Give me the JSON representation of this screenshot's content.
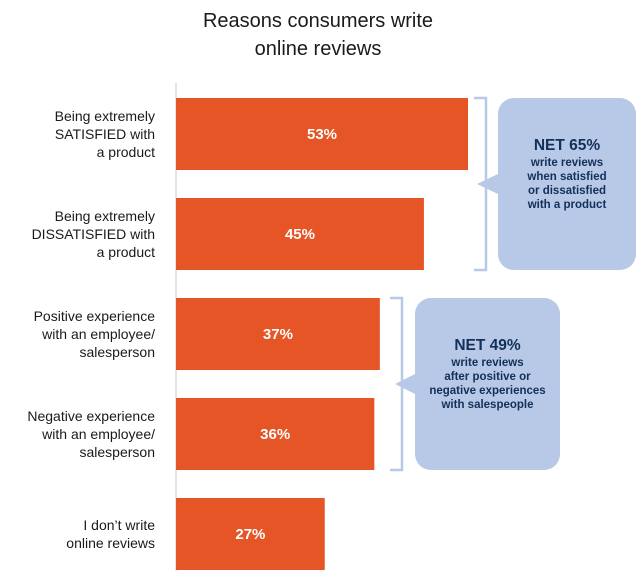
{
  "chart_data": {
    "type": "bar",
    "orientation": "horizontal",
    "title": "Reasons consumers write online reviews",
    "title_lines": [
      "Reasons consumers write",
      "online reviews"
    ],
    "categories": [
      "Being extremely SATISFIED with a product",
      "Being extremely DISSATISFIED with a product",
      "Positive experience with an employee/ salesperson",
      "Negative experience with an employee/ salesperson",
      "I don’t write online reviews"
    ],
    "category_lines": [
      [
        "Being extremely",
        "SATISFIED with",
        "a product"
      ],
      [
        "Being extremely",
        "DISSATISFIED with",
        "a product"
      ],
      [
        "Positive experience",
        "with an employee/",
        "salesperson"
      ],
      [
        "Negative experience",
        "with an employee/",
        "salesperson"
      ],
      [
        "I don’t write",
        "online reviews"
      ]
    ],
    "values": [
      53,
      45,
      37,
      36,
      27
    ],
    "value_labels": [
      "53%",
      "45%",
      "37%",
      "36%",
      "27%"
    ],
    "unit": "%",
    "annotations": [
      {
        "heading": "NET 65%",
        "lines": [
          "write reviews",
          "when satisfied",
          "or dissatisfied",
          "with a product"
        ],
        "covers": [
          0,
          1
        ]
      },
      {
        "heading": "NET 49%",
        "lines": [
          "write reviews",
          "after positive or",
          "negative experiences",
          "with salespeople"
        ],
        "covers": [
          2,
          3
        ]
      }
    ],
    "colors": {
      "bar": "#e65525",
      "callout_fill": "#b7c9e6",
      "callout_text": "#12305a",
      "bracket": "#b7c9e6",
      "axis": "#c9c9c9",
      "title": "#1a1a1a"
    },
    "grid": false,
    "legend": "none"
  }
}
